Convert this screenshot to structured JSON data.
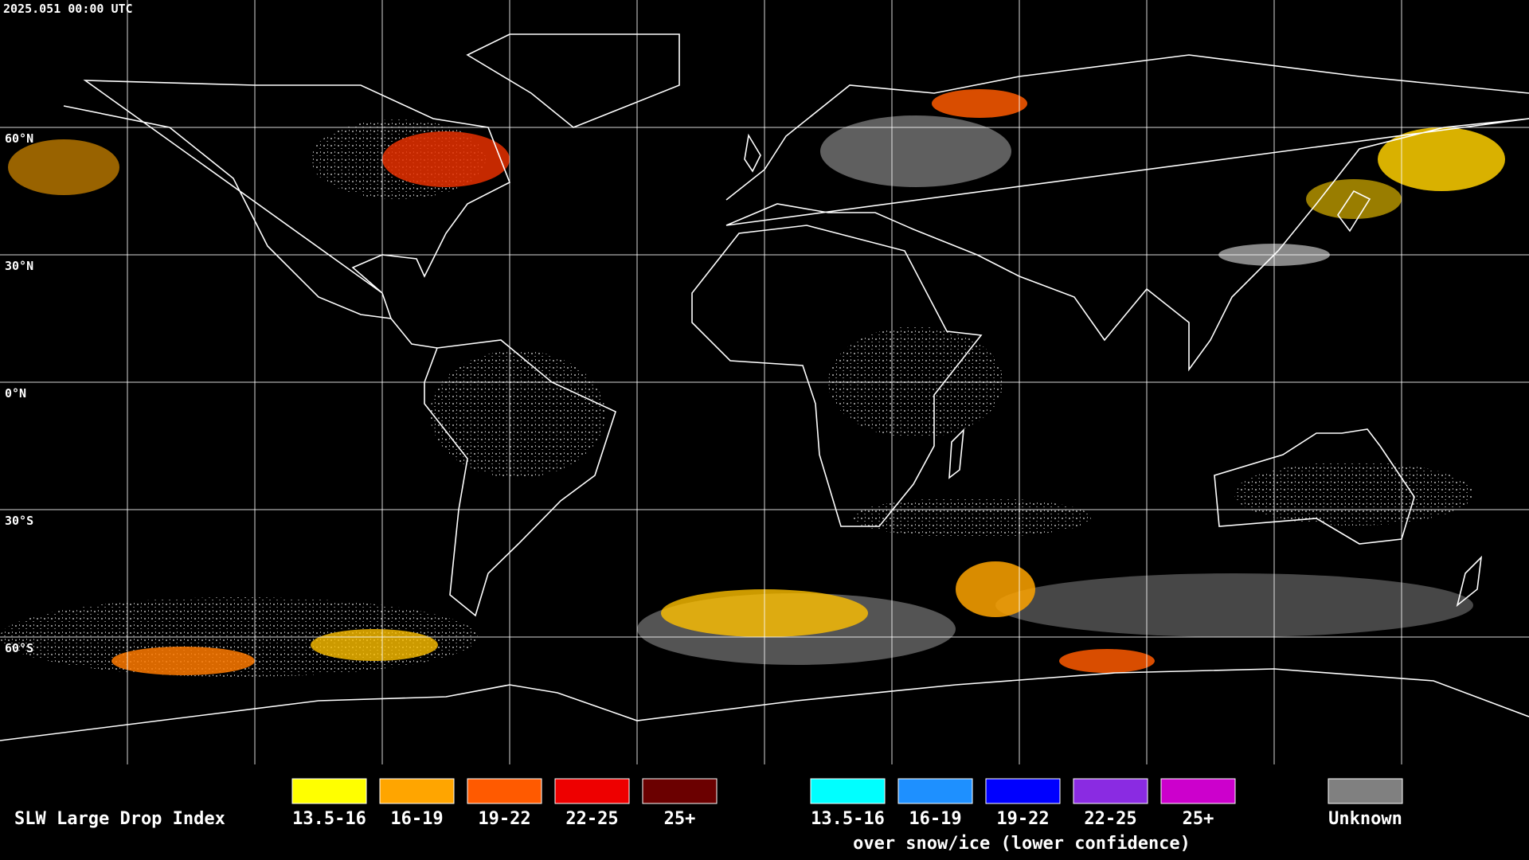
{
  "header": {
    "timestamp": "2025.051 00:00 UTC"
  },
  "lat_labels": [
    "60°N",
    "30°N",
    "0°N",
    "30°S",
    "60°S"
  ],
  "legend": {
    "title": "SLW Large Drop Index",
    "items": [
      {
        "label": "13.5-16",
        "color": "#ffff00"
      },
      {
        "label": "16-19",
        "color": "#ffa500"
      },
      {
        "label": "19-22",
        "color": "#ff5a00"
      },
      {
        "label": "22-25",
        "color": "#ee0000"
      },
      {
        "label": "25+",
        "color": "#6b0000"
      }
    ],
    "snow_items": [
      {
        "label": "13.5-16",
        "color": "#00ffff"
      },
      {
        "label": "16-19",
        "color": "#1e90ff"
      },
      {
        "label": "19-22",
        "color": "#0000ff"
      },
      {
        "label": "22-25",
        "color": "#8a2be2"
      },
      {
        "label": "25+",
        "color": "#cc00cc"
      }
    ],
    "snow_caption": "over snow/ice (lower confidence)",
    "unknown": {
      "label": "Unknown",
      "color": "#808080"
    }
  }
}
